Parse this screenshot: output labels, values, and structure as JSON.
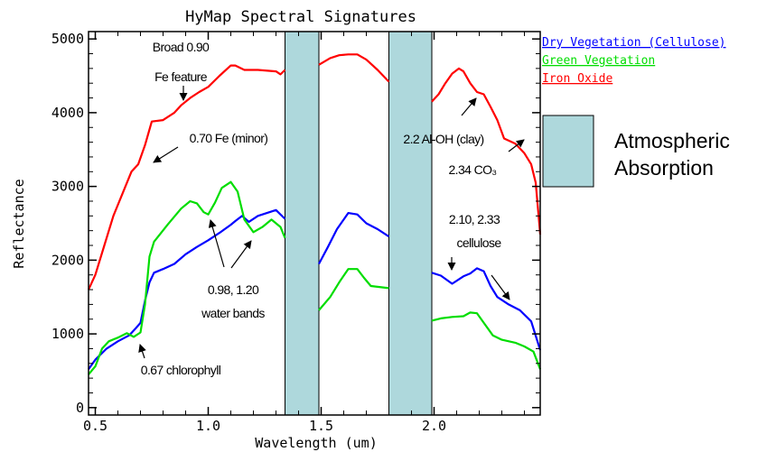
{
  "chart_data": {
    "type": "line",
    "title": "HyMap Spectral Signatures",
    "xlabel": "Wavelength (um)",
    "ylabel": "Reflectance",
    "xlim": [
      0.47,
      2.47
    ],
    "ylim": [
      -100,
      5100
    ],
    "x_ticks": [
      "0.5",
      "1.0",
      "1.5",
      "2.0"
    ],
    "y_ticks": [
      "0",
      "1000",
      "2000",
      "3000",
      "4000",
      "5000"
    ],
    "absorption_bands": [
      [
        1.34,
        1.49
      ],
      [
        1.8,
        1.99
      ]
    ],
    "absorption_legend": "Atmospheric\nAbsorption",
    "series": [
      {
        "name": "Dry Vegetation (Cellulose)",
        "color": "#0000ff",
        "segments": [
          [
            [
              0.47,
              520
            ],
            [
              0.5,
              650
            ],
            [
              0.55,
              800
            ],
            [
              0.6,
              900
            ],
            [
              0.65,
              980
            ],
            [
              0.68,
              1080
            ],
            [
              0.7,
              1150
            ],
            [
              0.72,
              1450
            ],
            [
              0.74,
              1700
            ],
            [
              0.76,
              1830
            ],
            [
              0.8,
              1880
            ],
            [
              0.85,
              1950
            ],
            [
              0.9,
              2080
            ],
            [
              0.95,
              2180
            ],
            [
              1.0,
              2270
            ],
            [
              1.05,
              2370
            ],
            [
              1.1,
              2480
            ],
            [
              1.12,
              2530
            ],
            [
              1.15,
              2600
            ],
            [
              1.18,
              2520
            ],
            [
              1.22,
              2600
            ],
            [
              1.26,
              2640
            ],
            [
              1.3,
              2680
            ],
            [
              1.34,
              2560
            ]
          ],
          [
            [
              1.49,
              1950
            ],
            [
              1.53,
              2180
            ],
            [
              1.57,
              2420
            ],
            [
              1.62,
              2640
            ],
            [
              1.66,
              2620
            ],
            [
              1.7,
              2500
            ],
            [
              1.75,
              2420
            ],
            [
              1.8,
              2320
            ]
          ],
          [
            [
              1.99,
              1830
            ],
            [
              2.03,
              1790
            ],
            [
              2.08,
              1680
            ],
            [
              2.13,
              1780
            ],
            [
              2.16,
              1820
            ],
            [
              2.19,
              1890
            ],
            [
              2.22,
              1850
            ],
            [
              2.25,
              1650
            ],
            [
              2.28,
              1500
            ],
            [
              2.33,
              1400
            ],
            [
              2.38,
              1320
            ],
            [
              2.43,
              1170
            ],
            [
              2.47,
              780
            ]
          ]
        ]
      },
      {
        "name": "Green Vegetation",
        "color": "#00dd00",
        "segments": [
          [
            [
              0.47,
              450
            ],
            [
              0.5,
              560
            ],
            [
              0.53,
              800
            ],
            [
              0.56,
              900
            ],
            [
              0.6,
              950
            ],
            [
              0.64,
              1010
            ],
            [
              0.67,
              960
            ],
            [
              0.7,
              1020
            ],
            [
              0.72,
              1400
            ],
            [
              0.74,
              2050
            ],
            [
              0.76,
              2250
            ],
            [
              0.82,
              2480
            ],
            [
              0.88,
              2700
            ],
            [
              0.92,
              2800
            ],
            [
              0.95,
              2770
            ],
            [
              0.98,
              2650
            ],
            [
              1.0,
              2620
            ],
            [
              1.03,
              2780
            ],
            [
              1.06,
              2980
            ],
            [
              1.1,
              3060
            ],
            [
              1.13,
              2930
            ],
            [
              1.16,
              2550
            ],
            [
              1.2,
              2380
            ],
            [
              1.24,
              2450
            ],
            [
              1.28,
              2550
            ],
            [
              1.32,
              2450
            ],
            [
              1.34,
              2300
            ]
          ],
          [
            [
              1.49,
              1320
            ],
            [
              1.54,
              1500
            ],
            [
              1.58,
              1700
            ],
            [
              1.62,
              1880
            ],
            [
              1.66,
              1880
            ],
            [
              1.69,
              1760
            ],
            [
              1.72,
              1650
            ],
            [
              1.8,
              1620
            ]
          ],
          [
            [
              1.99,
              1180
            ],
            [
              2.03,
              1210
            ],
            [
              2.08,
              1230
            ],
            [
              2.13,
              1240
            ],
            [
              2.16,
              1290
            ],
            [
              2.19,
              1280
            ],
            [
              2.22,
              1150
            ],
            [
              2.26,
              980
            ],
            [
              2.3,
              920
            ],
            [
              2.36,
              880
            ],
            [
              2.4,
              830
            ],
            [
              2.44,
              760
            ],
            [
              2.47,
              520
            ]
          ]
        ]
      },
      {
        "name": "Iron Oxide",
        "color": "#ff0000",
        "segments": [
          [
            [
              0.47,
              1600
            ],
            [
              0.5,
              1800
            ],
            [
              0.54,
              2200
            ],
            [
              0.58,
              2600
            ],
            [
              0.62,
              2900
            ],
            [
              0.66,
              3200
            ],
            [
              0.69,
              3300
            ],
            [
              0.72,
              3560
            ],
            [
              0.75,
              3880
            ],
            [
              0.8,
              3900
            ],
            [
              0.85,
              4000
            ],
            [
              0.88,
              4100
            ],
            [
              0.92,
              4200
            ],
            [
              0.96,
              4280
            ],
            [
              1.0,
              4350
            ],
            [
              1.05,
              4500
            ],
            [
              1.1,
              4640
            ],
            [
              1.12,
              4640
            ],
            [
              1.16,
              4580
            ],
            [
              1.22,
              4580
            ],
            [
              1.3,
              4560
            ],
            [
              1.32,
              4520
            ],
            [
              1.34,
              4580
            ]
          ],
          [
            [
              1.49,
              4650
            ],
            [
              1.54,
              4740
            ],
            [
              1.58,
              4780
            ],
            [
              1.62,
              4790
            ],
            [
              1.66,
              4790
            ],
            [
              1.7,
              4720
            ],
            [
              1.75,
              4580
            ],
            [
              1.8,
              4420
            ]
          ],
          [
            [
              1.99,
              4150
            ],
            [
              2.02,
              4250
            ],
            [
              2.05,
              4400
            ],
            [
              2.08,
              4530
            ],
            [
              2.11,
              4600
            ],
            [
              2.13,
              4560
            ],
            [
              2.16,
              4400
            ],
            [
              2.19,
              4280
            ],
            [
              2.22,
              4250
            ],
            [
              2.25,
              4080
            ],
            [
              2.28,
              3900
            ],
            [
              2.31,
              3650
            ],
            [
              2.36,
              3580
            ],
            [
              2.4,
              3450
            ],
            [
              2.43,
              3300
            ],
            [
              2.45,
              3050
            ],
            [
              2.47,
              2350
            ]
          ]
        ]
      }
    ],
    "annotations": [
      {
        "id": "fe-090",
        "lines": [
          "Broad 0.90",
          "Fe feature"
        ]
      },
      {
        "id": "fe-070",
        "lines": [
          "0.70 Fe (minor)"
        ]
      },
      {
        "id": "water",
        "lines": [
          "0.98, 1.20",
          "water bands"
        ]
      },
      {
        "id": "chl",
        "lines": [
          "0.67 chlorophyll"
        ]
      },
      {
        "id": "aloh",
        "lines": [
          "2.2 Al-OH (clay)"
        ]
      },
      {
        "id": "co3",
        "lines": [
          "2.34 CO₃"
        ]
      },
      {
        "id": "cell",
        "lines": [
          "2.10, 2.33",
          "cellulose"
        ]
      }
    ]
  }
}
